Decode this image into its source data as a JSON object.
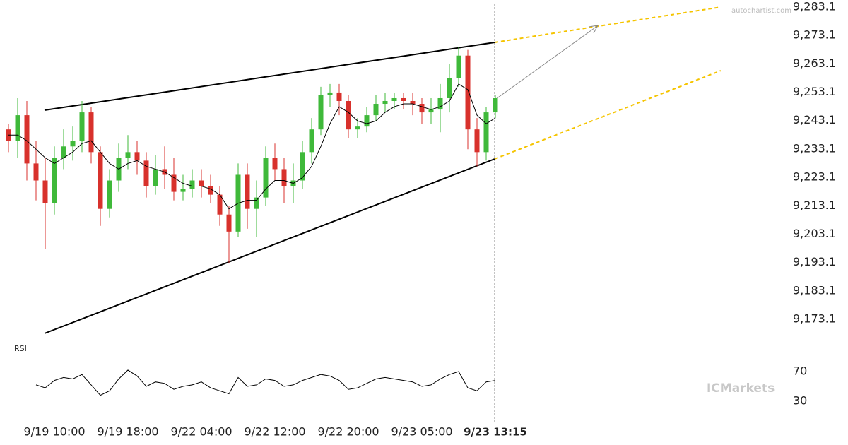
{
  "chart_data": [
    {
      "type": "candlestick",
      "categories": [
        null,
        null,
        null,
        null,
        null,
        "9/19 10:00",
        null,
        null,
        null,
        null,
        null,
        null,
        null,
        "9/19 18:00",
        null,
        null,
        null,
        null,
        null,
        null,
        null,
        "9/22 04:00",
        null,
        null,
        null,
        null,
        null,
        null,
        null,
        "9/22 12:00",
        null,
        null,
        null,
        null,
        null,
        null,
        null,
        "9/22 20:00",
        null,
        null,
        null,
        null,
        null,
        null,
        null,
        "9/23 05:00",
        null,
        null,
        null,
        null,
        null,
        null,
        null,
        "9/23 13:15"
      ],
      "open": [
        9240,
        9236,
        9245,
        9228,
        9222,
        9214,
        9230,
        9234,
        9236,
        9246,
        9232,
        9212,
        9222,
        9230,
        9232,
        9229,
        9220,
        9226,
        9224,
        9218,
        9219,
        9222,
        9220,
        9217,
        9210,
        9204,
        9224,
        9212,
        9216,
        9230,
        9226,
        9220,
        9222,
        9232,
        9240,
        9252,
        9253,
        9250,
        9240,
        9241,
        9245,
        9249,
        9250,
        9251,
        9250,
        9249,
        9246,
        9247,
        9251,
        9258,
        9266,
        9240,
        9232,
        9246
      ],
      "high": [
        9242,
        9251,
        9250,
        9236,
        9230,
        9234,
        9240,
        9241,
        9250,
        9248,
        9234,
        9226,
        9235,
        9238,
        9236,
        9232,
        9231,
        9234,
        9230,
        9224,
        9226,
        9226,
        9224,
        9220,
        9213,
        9228,
        9228,
        9222,
        9234,
        9235,
        9230,
        9228,
        9236,
        9244,
        9255,
        9256,
        9256,
        9252,
        9244,
        9248,
        9252,
        9253,
        9253,
        9253,
        9253,
        9251,
        9251,
        9256,
        9263,
        9269,
        9268,
        9244,
        9248,
        9252
      ],
      "low": [
        9232,
        9230,
        9222,
        9215,
        9198,
        9210,
        9226,
        9229,
        9232,
        9228,
        9206,
        9209,
        9218,
        9226,
        9224,
        9216,
        9217,
        9219,
        9215,
        9215,
        9216,
        9216,
        9214,
        9206,
        9193,
        9202,
        9205,
        9202,
        9213,
        9222,
        9214,
        9214,
        9219,
        9228,
        9238,
        9248,
        9245,
        9237,
        9237,
        9239,
        9243,
        9246,
        9247,
        9247,
        9245,
        9242,
        9242,
        9239,
        9246,
        9255,
        9233,
        9227,
        9229,
        9244
      ],
      "close": [
        9236,
        9245,
        9228,
        9222,
        9214,
        9230,
        9234,
        9236,
        9246,
        9232,
        9212,
        9222,
        9230,
        9232,
        9229,
        9220,
        9226,
        9224,
        9218,
        9219,
        9222,
        9220,
        9217,
        9210,
        9204,
        9224,
        9212,
        9216,
        9230,
        9226,
        9220,
        9222,
        9232,
        9240,
        9252,
        9253,
        9250,
        9240,
        9241,
        9245,
        9249,
        9250,
        9251,
        9250,
        9249,
        9246,
        9247,
        9251,
        9258,
        9266,
        9240,
        9232,
        9246,
        9251
      ],
      "up_color": "#3fb93a",
      "down_color": "#d8312c",
      "ma": {
        "color": "#000000",
        "values": [
          9238,
          9238,
          9236,
          9233,
          9230,
          9228,
          9230,
          9232,
          9235,
          9236,
          9232,
          9228,
          9226,
          9228,
          9229,
          9227,
          9226,
          9225,
          9223,
          9221,
          9220,
          9220,
          9219,
          9217,
          9212,
          9214,
          9215,
          9215,
          9219,
          9222,
          9222,
          9221,
          9223,
          9227,
          9234,
          9242,
          9248,
          9246,
          9243,
          9242,
          9243,
          9246,
          9248,
          9249,
          9249,
          9248,
          9247,
          9248,
          9250,
          9256,
          9254,
          9245,
          9242,
          9244
        ]
      },
      "ylim": [
        9173.1,
        9283.1
      ],
      "yticks": [
        {
          "value": 9173.1,
          "label": "9,173.1"
        },
        {
          "value": 9183.1,
          "label": "9,183.1"
        },
        {
          "value": 9193.1,
          "label": "9,193.1"
        },
        {
          "value": 9203.1,
          "label": "9,203.1"
        },
        {
          "value": 9213.1,
          "label": "9,213.1"
        },
        {
          "value": 9223.1,
          "label": "9,223.1"
        },
        {
          "value": 9233.1,
          "label": "9,233.1"
        },
        {
          "value": 9243.1,
          "label": "9,243.1"
        },
        {
          "value": 9253.1,
          "label": "9,253.1"
        },
        {
          "value": 9263.1,
          "label": "9,263.1"
        },
        {
          "value": 9273.1,
          "label": "9,273.1"
        },
        {
          "value": 9283.1,
          "label": "9,283.1"
        }
      ]
    },
    {
      "type": "line",
      "title": "RSI",
      "color": "#000000",
      "values": [
        null,
        null,
        null,
        52,
        48,
        58,
        62,
        60,
        66,
        52,
        38,
        44,
        60,
        72,
        64,
        50,
        56,
        54,
        46,
        50,
        52,
        56,
        48,
        44,
        40,
        62,
        50,
        52,
        60,
        58,
        50,
        52,
        58,
        62,
        66,
        64,
        58,
        46,
        48,
        54,
        60,
        62,
        60,
        58,
        56,
        50,
        52,
        60,
        66,
        70,
        48,
        44,
        56,
        58
      ],
      "ylim": [
        0,
        100
      ],
      "yticks": [
        30,
        70
      ]
    }
  ],
  "watermarks": {
    "source": "autochartist.com",
    "brand": "ICMarkets"
  }
}
